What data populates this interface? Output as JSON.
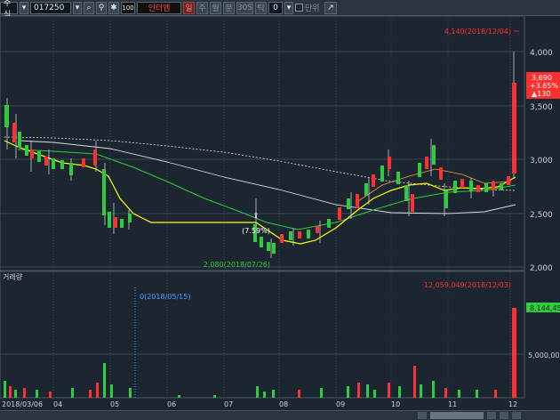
{
  "toolbar": {
    "category": "주식",
    "code": "017250",
    "unit_badge": "100",
    "name": "인터엠",
    "period_day": "일",
    "period_week": "주",
    "period_month": "월",
    "period_minute": "분",
    "minute_value": "30S",
    "tick": "틱",
    "count": "0",
    "checkbox_label": "단위"
  },
  "colors": {
    "background": "#1b2630",
    "up": "#ff3030",
    "down": "#4aa0ff",
    "candle_body": "#2ecc40",
    "ma_short": "#ffff00",
    "ma_mid": "#2ecc40",
    "ma_long": "#dcdcdc",
    "grid": "#3a4652"
  },
  "price_panel": {
    "y_ticks": [
      "4,000",
      "3,500",
      "3,000",
      "2,500",
      "2,000"
    ],
    "current_price": "3,690",
    "change_pct": "+3.65%",
    "change_abs": "▲130",
    "annotation_high": "4,140(2018/12/04)",
    "annotation_low": "2,080(2018/07/26)",
    "annotation_marker": "(7.59%)"
  },
  "volume_panel": {
    "title": "거래량",
    "y_ticks": [
      "5,000,000"
    ],
    "current_volume": "8,144,45",
    "annotation_max": "12,059,049(2018/12/03)",
    "annotation_zero": "0(2018/05/15)"
  },
  "x_axis": {
    "labels": [
      "2018/03/06",
      "04",
      "05",
      "06",
      "07",
      "08",
      "09",
      "10",
      "11",
      "12"
    ]
  },
  "chart_data": [
    {
      "type": "line",
      "title": "",
      "x": [
        "2018/03",
        "2018/04",
        "2018/05",
        "2018/06",
        "2018/07",
        "2018/08",
        "2018/09",
        "2018/10",
        "2018/11",
        "2018/12"
      ],
      "series": [
        {
          "values": [
            3350,
            3100,
            2430,
            2430,
            2450,
            2250,
            2450,
            2900,
            2800,
            3690
          ]
        }
      ],
      "ylim": [
        1950,
        4350
      ],
      "grid": true
    },
    {
      "type": "bar",
      "title": "",
      "x": [
        "2018/03",
        "2018/04",
        "2018/05",
        "2018/06",
        "2018/07",
        "2018/08",
        "2018/09",
        "2018/10",
        "2018/11",
        "2018/12"
      ],
      "series": [
        {
          "values": [
            1200000,
            900000,
            3500000,
            200000,
            1000000,
            1300000,
            1200000,
            1800000,
            1000000,
            12059049
          ]
        }
      ],
      "ylim": [
        0,
        13000000
      ],
      "grid": true
    }
  ]
}
